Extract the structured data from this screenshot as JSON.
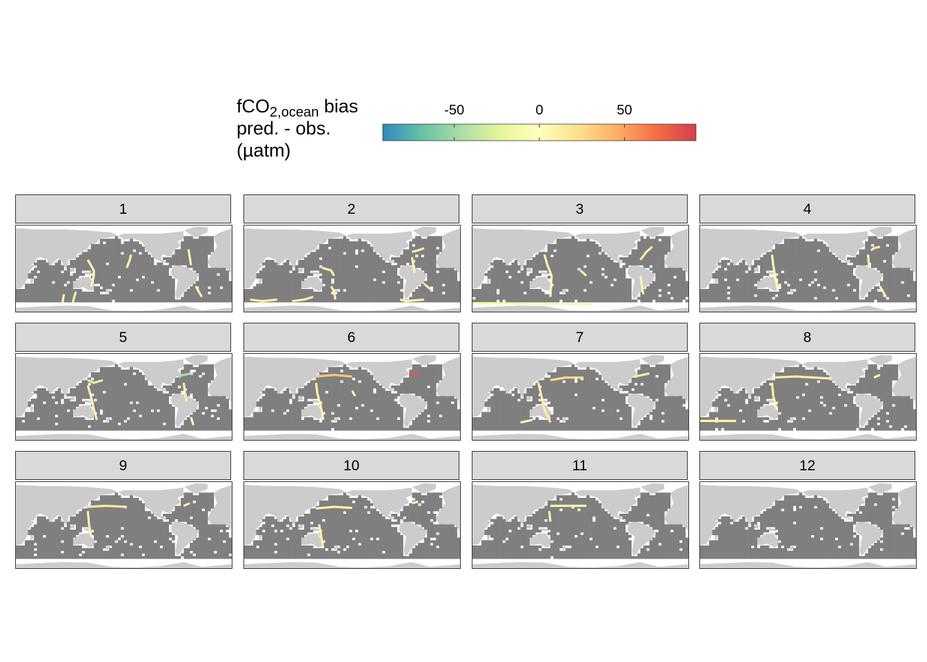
{
  "legend": {
    "title_main": "fCO",
    "title_sub": "2,ocean",
    "title_suffix": " bias",
    "title_line2": "pred. - obs.",
    "title_line3": "(µatm)",
    "ticks": [
      -50,
      0,
      50
    ],
    "range": [
      -92,
      92
    ],
    "palette": [
      "#3288bd",
      "#66c2a5",
      "#abdda4",
      "#e6f598",
      "#ffffbf",
      "#fee08b",
      "#fdae61",
      "#f46d43",
      "#d53e4f"
    ]
  },
  "colors": {
    "ocean_no_obs": "#7f7f7f",
    "land": "#cccccc",
    "strip_bg": "#d9d9d9"
  },
  "chart_data": {
    "type": "heatmap",
    "facet_labels": [
      "1",
      "2",
      "3",
      "4",
      "5",
      "6",
      "7",
      "8",
      "9",
      "10",
      "11",
      "12"
    ],
    "description_units": "fCO2,ocean bias pred. - obs. (µatm) along ship tracks, Pacific-centred world map per month",
    "tracks": [
      {
        "facet": "1",
        "segments": [
          {
            "lon": [
              140,
              145,
              150,
              150,
              146
            ],
            "lat": [
              20,
              10,
              0,
              -10,
              -30
            ],
            "bias": 5
          },
          {
            "lon": [
              120,
              115
            ],
            "lat": [
              -40,
              -60
            ],
            "bias": 10
          },
          {
            "lon": [
              205,
              210,
              212
            ],
            "lat": [
              5,
              20,
              30
            ],
            "bias": 8
          },
          {
            "lon": [
              308,
              310,
              312
            ],
            "lat": [
              40,
              25,
              10
            ],
            "bias": 5
          },
          {
            "lon": [
              320,
              330
            ],
            "lat": [
              -30,
              -50
            ],
            "bias": 6
          },
          {
            "lon": [
              100,
              98
            ],
            "lat": [
              -45,
              -60
            ],
            "bias": 7
          }
        ]
      },
      {
        "facet": "2",
        "segments": [
          {
            "lon": [
              30,
              50,
              75
            ],
            "lat": [
              -55,
              -58,
              -55
            ],
            "bias": 12
          },
          {
            "lon": [
              100,
              120,
              135
            ],
            "lat": [
              -58,
              -55,
              -50
            ],
            "bias": 10
          },
          {
            "lon": [
              165,
              170,
              172
            ],
            "lat": [
              -30,
              -40,
              -55
            ],
            "bias": 8
          },
          {
            "lon": [
              280,
              290,
              300,
              320
            ],
            "lat": [
              -55,
              -58,
              -57,
              -55
            ],
            "bias": 9
          },
          {
            "lon": [
              300,
              310,
              320
            ],
            "lat": [
              35,
              38,
              42
            ],
            "bias": 10
          },
          {
            "lon": [
              300,
              302,
              304
            ],
            "lat": [
              25,
              10,
              -5
            ],
            "bias": 7
          },
          {
            "lon": [
              320,
              330
            ],
            "lat": [
              -25,
              -35
            ],
            "bias": 12
          },
          {
            "lon": [
              150,
              165,
              170
            ],
            "lat": [
              5,
              0,
              -10
            ],
            "bias": 8
          }
        ]
      },
      {
        "facet": "3",
        "segments": [
          {
            "lon": [
              5,
              60,
              110
            ],
            "lat": [
              -62,
              -62,
              -63
            ],
            "bias": -10
          },
          {
            "lon": [
              110,
              160,
              220
            ],
            "lat": [
              -63,
              -63,
              -64
            ],
            "bias": -8
          },
          {
            "lon": [
              140,
              145,
              152,
              150
            ],
            "lat": [
              30,
              10,
              -10,
              -50
            ],
            "bias": 6
          },
          {
            "lon": [
              200,
              205,
              210
            ],
            "lat": [
              0,
              -5,
              -10
            ],
            "bias": -15
          },
          {
            "lon": [
              300,
              310,
              320
            ],
            "lat": [
              20,
              35,
              45
            ],
            "bias": 10
          },
          {
            "lon": [
              300,
              305
            ],
            "lat": [
              -10,
              -45
            ],
            "bias": 8
          }
        ]
      },
      {
        "facet": "4",
        "segments": [
          {
            "lon": [
              140,
              142,
              145,
              150
            ],
            "lat": [
              30,
              10,
              -10,
              -40
            ],
            "bias": 6
          },
          {
            "lon": [
              305,
              310,
              320
            ],
            "lat": [
              38,
              42,
              45
            ],
            "bias": 10
          },
          {
            "lon": [
              300,
              302
            ],
            "lat": [
              30,
              5
            ],
            "bias": 7
          },
          {
            "lon": [
              320,
              330
            ],
            "lat": [
              -30,
              -50
            ],
            "bias": 8
          }
        ]
      },
      {
        "facet": "5",
        "segments": [
          {
            "lon": [
              140,
              150,
              165
            ],
            "lat": [
              35,
              30,
              35
            ],
            "bias": -20
          },
          {
            "lon": [
              140,
              145,
              150,
              155
            ],
            "lat": [
              25,
              5,
              -20,
              -40
            ],
            "bias": 8
          },
          {
            "lon": [
              290,
              300,
              312
            ],
            "lat": [
              42,
              45,
              48
            ],
            "bias": -45
          },
          {
            "lon": [
              300,
              302,
              305
            ],
            "lat": [
              30,
              10,
              -5
            ],
            "bias": 10
          },
          {
            "lon": [
              312,
              316
            ],
            "lat": [
              -35,
              -50
            ],
            "bias": 6
          }
        ]
      },
      {
        "facet": "6",
        "segments": [
          {
            "lon": [
              140,
              170,
              200
            ],
            "lat": [
              42,
              45,
              42
            ],
            "bias": 35
          },
          {
            "lon": [
              140,
              142,
              148,
              152
            ],
            "lat": [
              30,
              10,
              -15,
              -40
            ],
            "bias": 10
          },
          {
            "lon": [
              295,
              305,
              312
            ],
            "lat": [
              45,
              47,
              50
            ],
            "bias": 80
          },
          {
            "lon": [
              200,
              205
            ],
            "lat": [
              15,
              5
            ],
            "bias": 8
          }
        ]
      },
      {
        "facet": "7",
        "segments": [
          {
            "lon": [
              150,
              175,
              205
            ],
            "lat": [
              35,
              40,
              40
            ],
            "bias": 25
          },
          {
            "lon": [
              130,
              135,
              140,
              150
            ],
            "lat": [
              30,
              5,
              -20,
              -45
            ],
            "bias": 12
          },
          {
            "lon": [
              290,
              300,
              315
            ],
            "lat": [
              42,
              44,
              48
            ],
            "bias": -20
          },
          {
            "lon": [
              100,
              120
            ],
            "lat": [
              -45,
              -40
            ],
            "bias": 8
          }
        ]
      },
      {
        "facet": "8",
        "segments": [
          {
            "lon": [
              140,
              180,
              240
            ],
            "lat": [
              40,
              42,
              38
            ],
            "bias": 12
          },
          {
            "lon": [
              140,
              142,
              148
            ],
            "lat": [
              30,
              5,
              -20
            ],
            "bias": 8
          },
          {
            "lon": [
              20,
              50,
              80
            ],
            "lat": [
              -42,
              -42,
              -42
            ],
            "bias": 10
          },
          {
            "lon": [
              310,
              320
            ],
            "lat": [
              40,
              45
            ],
            "bias": 6
          }
        ]
      },
      {
        "facet": "9",
        "segments": [
          {
            "lon": [
              140,
              170,
              205
            ],
            "lat": [
              38,
              40,
              38
            ],
            "bias": 15
          },
          {
            "lon": [
              140,
              142,
              146
            ],
            "lat": [
              30,
              5,
              -20
            ],
            "bias": 10
          },
          {
            "lon": [
              300,
              310
            ],
            "lat": [
              40,
              45
            ],
            "bias": 12
          },
          {
            "lon": [
              10,
              20
            ],
            "lat": [
              -50,
              -55
            ],
            "bias": 8
          }
        ]
      },
      {
        "facet": "10",
        "segments": [
          {
            "lon": [
              140,
              170,
              200
            ],
            "lat": [
              35,
              38,
              36
            ],
            "bias": 10
          },
          {
            "lon": [
              145,
              148,
              152
            ],
            "lat": [
              5,
              -15,
              -40
            ],
            "bias": 10
          },
          {
            "lon": [
              300,
              310
            ],
            "lat": [
              45,
              48
            ],
            "bias": 5
          }
        ]
      },
      {
        "facet": "11",
        "segments": [
          {
            "lon": [
              150,
              180,
              210
            ],
            "lat": [
              40,
              40,
              40
            ],
            "bias": 8
          },
          {
            "lon": [
              148,
              150
            ],
            "lat": [
              30,
              10
            ],
            "bias": 6
          }
        ]
      },
      {
        "facet": "12",
        "segments": []
      }
    ]
  }
}
